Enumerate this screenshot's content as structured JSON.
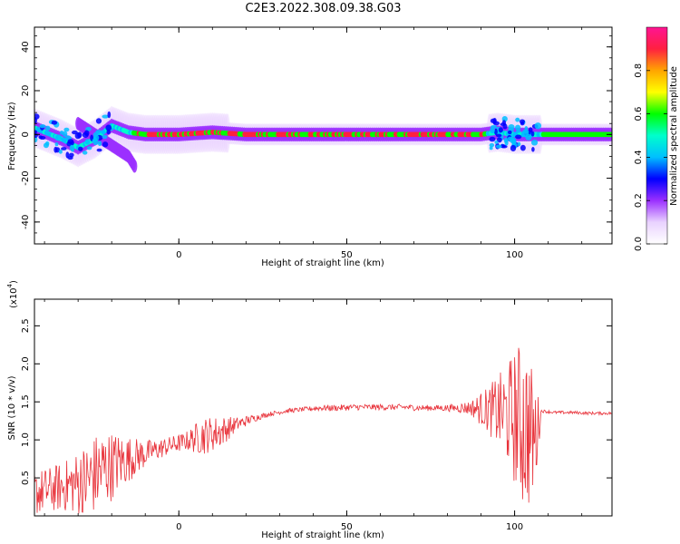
{
  "title": "C2E3.2022.308.09.38.G03",
  "chart_data": [
    {
      "type": "heatmap",
      "title": "",
      "xlabel": "Height of straight line (km)",
      "ylabel": "Frequency (Hz)",
      "xlim": [
        -43,
        129
      ],
      "ylim": [
        -50,
        49
      ],
      "xticks": [
        0,
        50,
        100
      ],
      "yticks": [
        -40,
        -20,
        0,
        20,
        40
      ],
      "grid": false,
      "colorbar": {
        "label": "Normalized spectral amplitude",
        "range": [
          0,
          1
        ],
        "ticks": [
          "0.0",
          "0.2",
          "0.4",
          "0.6",
          "0.8"
        ],
        "colormap": [
          "#ffffff",
          "#e9d2ff",
          "#9b30ff",
          "#0000ff",
          "#00bfff",
          "#00ffcc",
          "#00ff00",
          "#ffff00",
          "#ffa500",
          "#ff2040",
          "#ff1493"
        ]
      },
      "features": [
        {
          "name": "ridge",
          "x": [
            -43,
            -35,
            -30,
            -25,
            -20,
            -15,
            -10,
            0,
            10,
            20,
            40,
            60,
            80,
            90,
            95,
            100,
            105,
            108,
            129
          ],
          "y": [
            3,
            -2,
            -6,
            -2,
            4,
            1,
            0,
            0,
            1,
            0,
            0,
            0,
            0,
            0,
            1,
            0,
            0,
            0,
            0
          ]
        },
        {
          "name": "branch",
          "x": [
            -30,
            -25,
            -20,
            -15,
            -13
          ],
          "y": [
            5,
            0,
            -5,
            -10,
            -15
          ]
        }
      ]
    },
    {
      "type": "line",
      "title": "",
      "xlabel": "Height of straight line (km)",
      "ylabel": "SNR (10 * v/v)",
      "yscale_label": "(x10",
      "yscale_exponent": "4",
      "xlim": [
        -43,
        129
      ],
      "ylim": [
        0,
        2.85
      ],
      "xticks": [
        0,
        50,
        100
      ],
      "yticks": [
        "0.5",
        "1.0",
        "1.5",
        "2.0",
        "2.5"
      ],
      "grid": false,
      "series": [
        {
          "color": "#e8323a",
          "x": [
            -43,
            -38,
            -33,
            -28,
            -23,
            -18,
            -13,
            -8,
            -3,
            2,
            7,
            12,
            17,
            22,
            27,
            32,
            37,
            42,
            47,
            52,
            57,
            62,
            67,
            72,
            77,
            82,
            87,
            92,
            97,
            100,
            103,
            106,
            108,
            112,
            117,
            122,
            129
          ],
          "y": [
            0.3,
            0.35,
            0.4,
            0.45,
            0.6,
            0.7,
            0.78,
            0.85,
            0.92,
            0.98,
            1.05,
            1.1,
            1.2,
            1.28,
            1.34,
            1.38,
            1.4,
            1.42,
            1.42,
            1.43,
            1.43,
            1.43,
            1.43,
            1.42,
            1.42,
            1.42,
            1.42,
            1.4,
            1.35,
            1.3,
            1.2,
            1.0,
            1.38,
            1.36,
            1.36,
            1.35,
            1.35
          ],
          "noise_amplitude": [
            0.3,
            0.3,
            0.35,
            0.5,
            0.55,
            0.4,
            0.25,
            0.15,
            0.12,
            0.12,
            0.25,
            0.22,
            0.1,
            0.05,
            0.03,
            0.03,
            0.03,
            0.04,
            0.04,
            0.04,
            0.04,
            0.04,
            0.04,
            0.04,
            0.04,
            0.05,
            0.1,
            0.3,
            0.6,
            0.9,
            1.2,
            0.8,
            0.02,
            0.02,
            0.02,
            0.02,
            0.02
          ]
        }
      ]
    }
  ]
}
